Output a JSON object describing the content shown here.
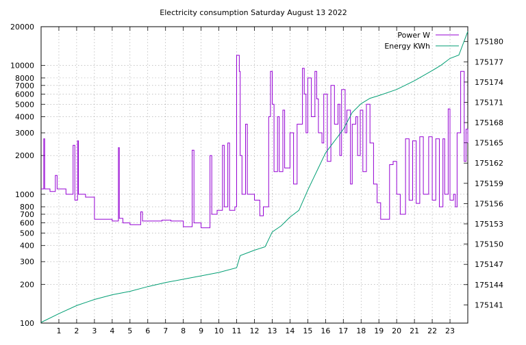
{
  "chart_data": {
    "type": "line",
    "title": "Electricity consumption Saturday August 13 2022",
    "x_ticks": [
      1,
      2,
      3,
      4,
      5,
      6,
      7,
      8,
      9,
      10,
      11,
      12,
      13,
      14,
      15,
      16,
      17,
      18,
      19,
      20,
      21,
      22,
      23
    ],
    "xlim": [
      0,
      24
    ],
    "y_left": {
      "scale": "log",
      "ylim": [
        100,
        20000
      ],
      "ticks": [
        {
          "v": 100,
          "label": "100"
        },
        {
          "v": 200,
          "label": "200"
        },
        {
          "v": 300,
          "label": "300"
        },
        {
          "v": 400,
          "label": "400"
        },
        {
          "v": 500,
          "label": "500"
        },
        {
          "v": 600,
          "label": "600"
        },
        {
          "v": 700,
          "label": "700"
        },
        {
          "v": 800,
          "label": "800"
        },
        {
          "v": 1000,
          "label": "1000"
        },
        {
          "v": 2000,
          "label": "2000"
        },
        {
          "v": 3000,
          "label": "3000"
        },
        {
          "v": 4000,
          "label": "4000"
        },
        {
          "v": 5000,
          "label": "5000"
        },
        {
          "v": 6000,
          "label": "6000"
        },
        {
          "v": 7000,
          "label": "7000"
        },
        {
          "v": 8000,
          "label": "8000"
        },
        {
          "v": 10000,
          "label": "10000"
        },
        {
          "v": 20000,
          "label": "20000"
        }
      ]
    },
    "y_right": {
      "scale": "linear",
      "ylim": [
        175138.3,
        175182.2
      ],
      "ticks": [
        175141,
        175144,
        175147,
        175150,
        175153,
        175156,
        175159,
        175162,
        175165,
        175168,
        175171,
        175174,
        175177,
        175180
      ]
    },
    "grid": true,
    "legend_position": "top-right",
    "series": [
      {
        "name": "Power W",
        "axis": "left",
        "color": "#9400d3",
        "points": [
          [
            0,
            1100
          ],
          [
            0.15,
            2700
          ],
          [
            0.2,
            1100
          ],
          [
            0.5,
            1050
          ],
          [
            0.8,
            1400
          ],
          [
            0.9,
            1100
          ],
          [
            1.4,
            1000
          ],
          [
            1.8,
            2400
          ],
          [
            1.9,
            900
          ],
          [
            2.05,
            2600
          ],
          [
            2.1,
            1000
          ],
          [
            2.5,
            950
          ],
          [
            3.0,
            640
          ],
          [
            3.5,
            640
          ],
          [
            4.0,
            620
          ],
          [
            4.35,
            2300
          ],
          [
            4.4,
            650
          ],
          [
            4.6,
            600
          ],
          [
            5.0,
            580
          ],
          [
            5.6,
            730
          ],
          [
            5.7,
            620
          ],
          [
            6.1,
            620
          ],
          [
            6.8,
            630
          ],
          [
            7.3,
            620
          ],
          [
            8.0,
            560
          ],
          [
            8.5,
            2200
          ],
          [
            8.6,
            600
          ],
          [
            9.0,
            550
          ],
          [
            9.5,
            2000
          ],
          [
            9.6,
            700
          ],
          [
            9.9,
            750
          ],
          [
            10.2,
            2400
          ],
          [
            10.3,
            800
          ],
          [
            10.5,
            2500
          ],
          [
            10.6,
            750
          ],
          [
            10.9,
            800
          ],
          [
            11.0,
            12000
          ],
          [
            11.15,
            9000
          ],
          [
            11.2,
            2000
          ],
          [
            11.3,
            1000
          ],
          [
            11.5,
            3500
          ],
          [
            11.6,
            1000
          ],
          [
            12.0,
            900
          ],
          [
            12.3,
            680
          ],
          [
            12.5,
            800
          ],
          [
            12.8,
            4000
          ],
          [
            12.9,
            9000
          ],
          [
            13.0,
            5000
          ],
          [
            13.1,
            1500
          ],
          [
            13.3,
            4000
          ],
          [
            13.4,
            1500
          ],
          [
            13.6,
            4500
          ],
          [
            13.7,
            1600
          ],
          [
            14.0,
            3000
          ],
          [
            14.2,
            1200
          ],
          [
            14.4,
            3500
          ],
          [
            14.7,
            9500
          ],
          [
            14.8,
            6000
          ],
          [
            14.9,
            3000
          ],
          [
            15.0,
            8000
          ],
          [
            15.2,
            4000
          ],
          [
            15.4,
            9000
          ],
          [
            15.5,
            5500
          ],
          [
            15.6,
            3000
          ],
          [
            15.8,
            2500
          ],
          [
            15.9,
            6000
          ],
          [
            16.1,
            1800
          ],
          [
            16.3,
            7000
          ],
          [
            16.5,
            3500
          ],
          [
            16.7,
            5000
          ],
          [
            16.8,
            2000
          ],
          [
            16.9,
            6500
          ],
          [
            17.1,
            3000
          ],
          [
            17.2,
            4500
          ],
          [
            17.4,
            1200
          ],
          [
            17.5,
            3500
          ],
          [
            17.7,
            4000
          ],
          [
            17.8,
            2000
          ],
          [
            17.95,
            4500
          ],
          [
            18.1,
            1500
          ],
          [
            18.3,
            5000
          ],
          [
            18.5,
            2500
          ],
          [
            18.7,
            1200
          ],
          [
            18.9,
            860
          ],
          [
            19.1,
            640
          ],
          [
            19.4,
            640
          ],
          [
            19.6,
            1700
          ],
          [
            19.8,
            1800
          ],
          [
            20.0,
            1000
          ],
          [
            20.2,
            700
          ],
          [
            20.5,
            2700
          ],
          [
            20.7,
            900
          ],
          [
            20.9,
            2600
          ],
          [
            21.1,
            850
          ],
          [
            21.3,
            2800
          ],
          [
            21.5,
            1000
          ],
          [
            21.8,
            2800
          ],
          [
            22.0,
            900
          ],
          [
            22.2,
            2700
          ],
          [
            22.4,
            800
          ],
          [
            22.6,
            2700
          ],
          [
            22.7,
            1000
          ],
          [
            22.9,
            4600
          ],
          [
            23.0,
            900
          ],
          [
            23.2,
            1000
          ],
          [
            23.3,
            800
          ],
          [
            23.4,
            3000
          ],
          [
            23.6,
            9000
          ],
          [
            23.8,
            1800
          ],
          [
            23.9,
            3200
          ],
          [
            24.0,
            2500
          ]
        ]
      },
      {
        "name": "Energy KWh",
        "axis": "right",
        "color": "#009e73",
        "points": [
          [
            0,
            175138.4
          ],
          [
            1,
            175139.7
          ],
          [
            2,
            175140.9
          ],
          [
            3,
            175141.8
          ],
          [
            4,
            175142.5
          ],
          [
            5,
            175143.0
          ],
          [
            6,
            175143.7
          ],
          [
            7,
            175144.3
          ],
          [
            8,
            175144.8
          ],
          [
            9,
            175145.3
          ],
          [
            10,
            175145.8
          ],
          [
            11,
            175146.5
          ],
          [
            11.2,
            175148.3
          ],
          [
            12,
            175149.1
          ],
          [
            12.6,
            175149.6
          ],
          [
            13,
            175151.8
          ],
          [
            13.5,
            175152.7
          ],
          [
            14,
            175154.0
          ],
          [
            14.5,
            175155.0
          ],
          [
            15,
            175158.0
          ],
          [
            16,
            175163.5
          ],
          [
            17,
            175167.0
          ],
          [
            17.5,
            175169.5
          ],
          [
            18,
            175170.8
          ],
          [
            18.5,
            175171.6
          ],
          [
            19,
            175172.0
          ],
          [
            20,
            175172.9
          ],
          [
            21,
            175174.2
          ],
          [
            22,
            175175.7
          ],
          [
            22.5,
            175176.5
          ],
          [
            23,
            175177.5
          ],
          [
            23.5,
            175178.0
          ],
          [
            24,
            175181.5
          ]
        ]
      }
    ]
  }
}
